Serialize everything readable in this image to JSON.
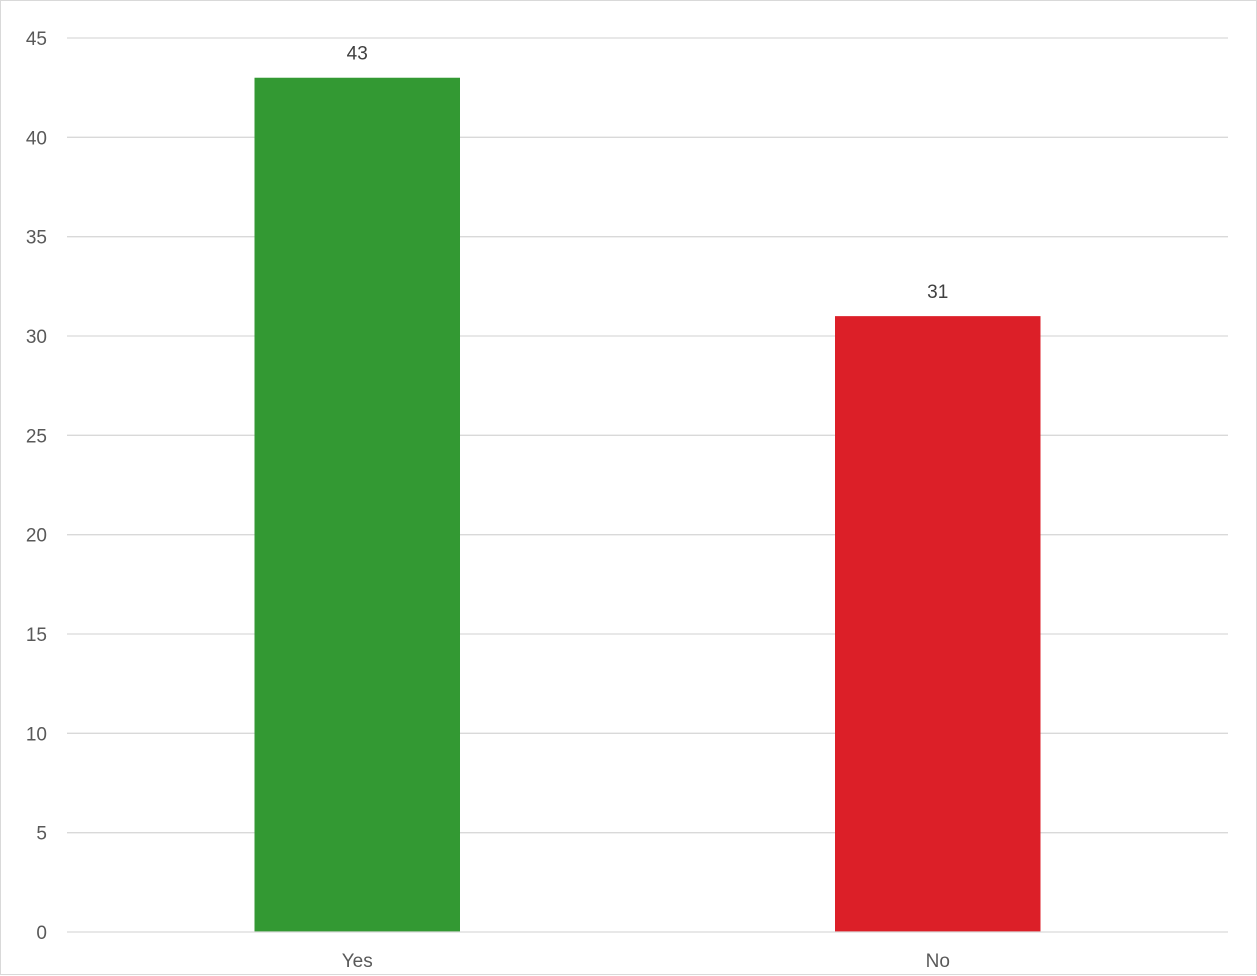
{
  "chart_data": {
    "type": "bar",
    "title": "",
    "xlabel": "",
    "ylabel": "",
    "categories": [
      "Yes",
      "No"
    ],
    "values": [
      43,
      31
    ],
    "data_labels": [
      "43",
      "31"
    ],
    "bar_colors": [
      "#339933",
      "#dc1f28"
    ],
    "ylim": [
      0,
      45
    ],
    "y_ticks": [
      0,
      5,
      10,
      15,
      20,
      25,
      30,
      35,
      40,
      45
    ],
    "y_tick_labels": [
      "0",
      "5",
      "10",
      "15",
      "20",
      "25",
      "30",
      "35",
      "40",
      "45"
    ],
    "grid": true,
    "legend": "none"
  }
}
